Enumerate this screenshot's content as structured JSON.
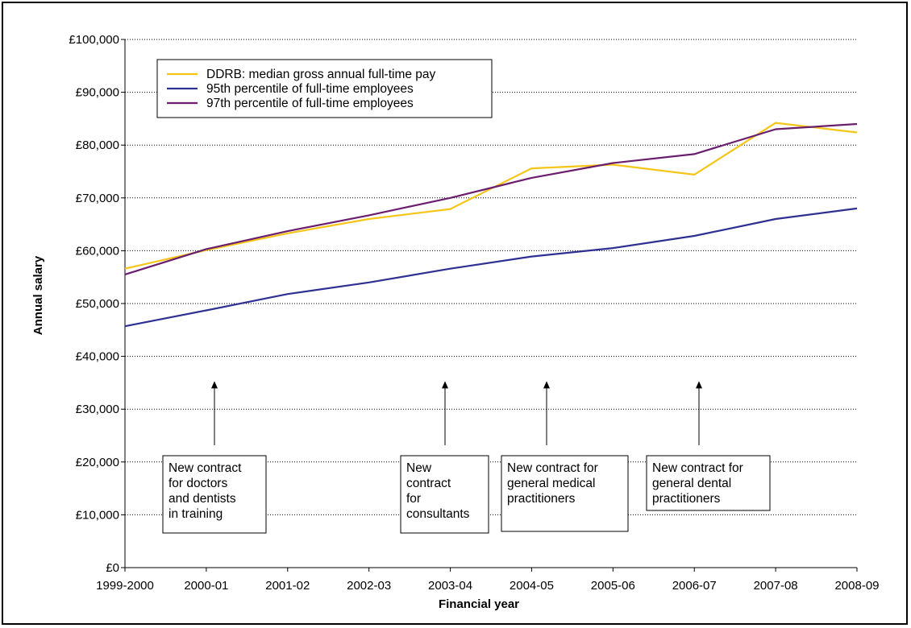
{
  "chart_data": {
    "type": "line",
    "title": "",
    "xlabel": "Financial year",
    "ylabel": "Annual salary",
    "categories": [
      "1999-2000",
      "2000-01",
      "2001-02",
      "2002-03",
      "2003-04",
      "2004-05",
      "2005-06",
      "2006-07",
      "2007-08",
      "2008-09"
    ],
    "ylim": [
      0,
      100000
    ],
    "yticks": [
      0,
      10000,
      20000,
      30000,
      40000,
      50000,
      60000,
      70000,
      80000,
      90000,
      100000
    ],
    "ytick_labels": [
      "£0",
      "£10,000",
      "£20,000",
      "£30,000",
      "£40,000",
      "£50,000",
      "£60,000",
      "£70,000",
      "£80,000",
      "£90,000",
      "£100,000"
    ],
    "grid": "horizontal dotted",
    "legend_position": "top-left",
    "series": [
      {
        "name": "DDRB: median gross annual full-time pay",
        "color": "#f5c518",
        "values": [
          56600,
          60100,
          63300,
          66000,
          67900,
          75600,
          76300,
          74400,
          84200,
          82400
        ]
      },
      {
        "name": "95th percentile of full-time employees",
        "color": "#2e3192",
        "values": [
          45700,
          48700,
          51800,
          54000,
          56600,
          58900,
          60500,
          62800,
          66000,
          68000
        ]
      },
      {
        "name": "97th percentile of full-time employees",
        "color": "#6b1e6e",
        "values": [
          55500,
          60300,
          63700,
          66700,
          70000,
          73800,
          76600,
          78300,
          83000,
          84000
        ]
      }
    ],
    "annotations": [
      {
        "category": "2000-01",
        "arrow_value": 35000,
        "lines": [
          "New contract",
          "for doctors",
          "and dentists",
          "in training"
        ]
      },
      {
        "category": "2003-04",
        "arrow_value": 35000,
        "lines": [
          "New",
          "contract",
          "for",
          "consultants"
        ]
      },
      {
        "category": "2004-05",
        "arrow_value": 35000,
        "lines": [
          "New contract for",
          "general medical",
          "practitioners"
        ]
      },
      {
        "category": "2006-07",
        "arrow_value": 35000,
        "lines": [
          "New contract for",
          "general dental",
          "practitioners"
        ]
      }
    ]
  }
}
